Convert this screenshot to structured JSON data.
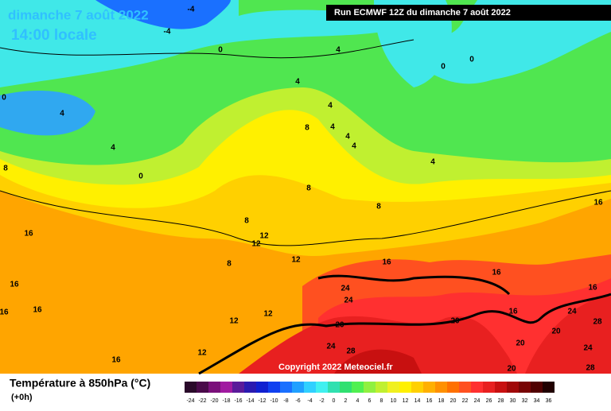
{
  "header": {
    "date": "dimanche 7 août 2022",
    "time": "14:00 locale",
    "run": "Run ECMWF 12Z du dimanche 7 août 2022"
  },
  "copyright": "Copyright 2022 Meteociel.fr",
  "contour_labels": [
    -4,
    -4,
    0,
    4,
    0,
    0,
    0,
    4,
    4,
    0,
    8,
    4,
    4,
    8,
    4,
    4,
    4,
    4,
    8,
    8,
    8,
    12,
    12,
    8,
    12,
    16,
    16,
    16,
    16,
    16,
    16,
    16,
    24,
    24,
    16,
    16,
    12,
    12,
    20,
    20,
    20,
    24,
    28,
    24,
    28,
    16,
    12,
    20,
    24,
    28,
    20
  ],
  "legend": {
    "title": "Température à 850hPa (°C)",
    "subtitle": "(+0h)",
    "ticks": [
      -24,
      -22,
      -20,
      -18,
      -16,
      -14,
      -12,
      -10,
      -8,
      -6,
      -4,
      -2,
      0,
      2,
      4,
      6,
      8,
      10,
      12,
      14,
      16,
      18,
      20,
      22,
      24,
      26,
      28,
      30,
      32,
      34,
      36
    ],
    "colors": [
      "#2a0a2a",
      "#4a0a4a",
      "#7a107a",
      "#a01aa0",
      "#5a1a9a",
      "#2a1ab0",
      "#1020d0",
      "#1040f0",
      "#1a70ff",
      "#20a0ff",
      "#30d0ff",
      "#40f0f0",
      "#30e0b0",
      "#30e070",
      "#50f050",
      "#90f040",
      "#c0f030",
      "#f0f020",
      "#fff000",
      "#ffd000",
      "#ffb000",
      "#ff9000",
      "#ff7000",
      "#ff5020",
      "#ff3030",
      "#e82020",
      "#c81010",
      "#a00808",
      "#780404",
      "#500000",
      "#200000"
    ]
  }
}
